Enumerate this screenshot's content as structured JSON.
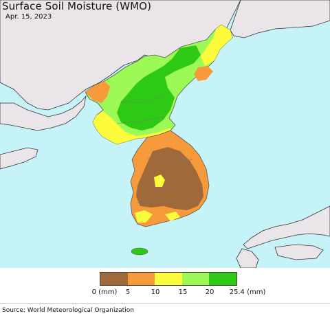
{
  "title": "Surface Soil Moisture (WMO)",
  "date": "Apr. 15, 2023",
  "legend": {
    "colors": [
      "#a0693a",
      "#f69a3b",
      "#fdfc3c",
      "#9cf956",
      "#2ec914"
    ],
    "ticks": [
      "0 (mm)",
      "5",
      "10",
      "15",
      "20",
      "25.4 (mm)"
    ]
  },
  "source": "Source: World Meteorological Organization",
  "map_colors": {
    "ocean": "#c6f3f8",
    "land_no_data": "#eae5e8",
    "border": "#777777"
  }
}
